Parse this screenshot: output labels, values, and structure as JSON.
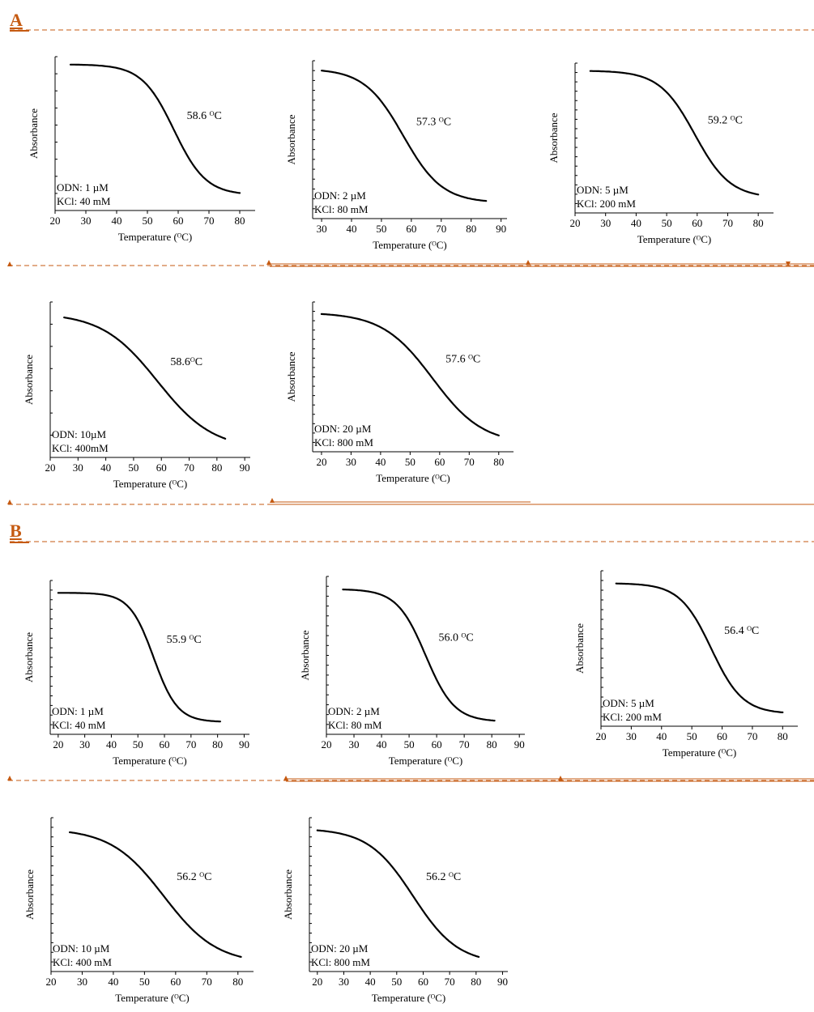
{
  "figure": {
    "section_a_label": "A",
    "section_b_label": "B",
    "colors": {
      "curve": "#000000",
      "axis": "#000000",
      "separator": "#c55a11"
    },
    "separator_marker_shape": "triangle"
  },
  "chart_data": [
    {
      "id": "a1",
      "section": "A",
      "type": "line",
      "series": [
        {
          "values_x": [
            25,
            80
          ],
          "tm": 58.6,
          "slope": 5.2,
          "y_top": 0.95,
          "y_bottom": 0.1
        }
      ],
      "annotation": "58.6 ᴼC",
      "legend_lines": [
        "ODN: 1 µM",
        "KCl: 40 mM"
      ],
      "xlabel": "Temperature (ᴼC)",
      "ylabel": "Absorbance",
      "xlim": [
        20,
        85
      ],
      "xticks": [
        20,
        30,
        40,
        50,
        60,
        70,
        80
      ],
      "y_ticks": 9
    },
    {
      "id": "a2",
      "section": "A",
      "type": "line",
      "series": [
        {
          "values_x": [
            30,
            85
          ],
          "tm": 57.3,
          "slope": 6.5,
          "y_top": 0.95,
          "y_bottom": 0.1
        }
      ],
      "annotation": "57.3 ᴼC",
      "legend_lines": [
        "ODN: 2 µM",
        "KCl: 80 mM"
      ],
      "xlabel": "Temperature (ᴼC)",
      "ylabel": "Absorbance",
      "xlim": [
        27,
        92
      ],
      "xticks": [
        30,
        40,
        50,
        60,
        70,
        80,
        90
      ],
      "y_ticks": 16
    },
    {
      "id": "a3",
      "section": "A",
      "type": "line",
      "series": [
        {
          "values_x": [
            25,
            80
          ],
          "tm": 59.2,
          "slope": 5.8,
          "y_top": 0.95,
          "y_bottom": 0.1
        }
      ],
      "annotation": "59.2 ᴼC",
      "legend_lines": [
        "ODN: 5 µM",
        "KCl: 200 mM"
      ],
      "xlabel": "Temperature (ᴼC)",
      "ylabel": "Absorbance",
      "xlim": [
        20,
        85
      ],
      "xticks": [
        20,
        30,
        40,
        50,
        60,
        70,
        80
      ],
      "y_ticks": 16
    },
    {
      "id": "a4",
      "section": "A",
      "type": "line",
      "series": [
        {
          "values_x": [
            25,
            83
          ],
          "tm": 58.6,
          "slope": 10.0,
          "y_top": 0.93,
          "y_bottom": 0.05
        }
      ],
      "annotation": "58.6ᴼC",
      "legend_lines": [
        "ODN: 10µM",
        "KCl: 400mM"
      ],
      "xlabel": "Temperature (ᴼC)",
      "ylabel": "Absorbance",
      "xlim": [
        20,
        92
      ],
      "xticks": [
        20,
        30,
        40,
        50,
        60,
        70,
        80,
        90
      ],
      "y_ticks": 7
    },
    {
      "id": "a5",
      "section": "A",
      "type": "line",
      "series": [
        {
          "values_x": [
            20,
            80
          ],
          "tm": 57.6,
          "slope": 8.5,
          "y_top": 0.93,
          "y_bottom": 0.05
        }
      ],
      "annotation": "57.6 ᴼC",
      "legend_lines": [
        "ODN: 20 µM",
        "KCl: 800 mM"
      ],
      "xlabel": "Temperature (ᴼC)",
      "ylabel": "Absorbance",
      "xlim": [
        17,
        85
      ],
      "xticks": [
        20,
        30,
        40,
        50,
        60,
        70,
        80
      ],
      "y_ticks": 16
    },
    {
      "id": "b1",
      "section": "B",
      "type": "line",
      "series": [
        {
          "values_x": [
            20,
            81
          ],
          "tm": 55.9,
          "slope": 4.5,
          "y_top": 0.92,
          "y_bottom": 0.08
        }
      ],
      "annotation": "55.9 ᴼC",
      "legend_lines": [
        "ODN: 1 µM",
        "KCl: 40 mM"
      ],
      "xlabel": "Temperature (ᴼC)",
      "ylabel": "Absorbance",
      "xlim": [
        17,
        92
      ],
      "xticks": [
        20,
        30,
        40,
        50,
        60,
        70,
        80,
        90
      ],
      "y_ticks": 16
    },
    {
      "id": "b2",
      "section": "B",
      "type": "line",
      "series": [
        {
          "values_x": [
            26,
            81
          ],
          "tm": 56.0,
          "slope": 5.2,
          "y_top": 0.92,
          "y_bottom": 0.08
        }
      ],
      "annotation": "56.0 ᴼC",
      "legend_lines": [
        "ODN: 2 µM",
        "KCl: 80 mM"
      ],
      "xlabel": "Temperature (ᴼC)",
      "ylabel": "Absorbance",
      "xlim": [
        20,
        92
      ],
      "xticks": [
        20,
        30,
        40,
        50,
        60,
        70,
        80,
        90
      ],
      "y_ticks": 16
    },
    {
      "id": "b3",
      "section": "B",
      "type": "line",
      "series": [
        {
          "values_x": [
            25,
            80
          ],
          "tm": 56.4,
          "slope": 5.2,
          "y_top": 0.92,
          "y_bottom": 0.08
        }
      ],
      "annotation": "56.4 ᴼC",
      "legend_lines": [
        "ODN: 5 µM",
        "KCl: 200 mM"
      ],
      "xlabel": "Temperature (ᴼC)",
      "ylabel": "Absorbance",
      "xlim": [
        20,
        85
      ],
      "xticks": [
        20,
        30,
        40,
        50,
        60,
        70,
        80
      ],
      "y_ticks": 16
    },
    {
      "id": "b4",
      "section": "B",
      "type": "line",
      "series": [
        {
          "values_x": [
            26,
            81
          ],
          "tm": 56.2,
          "slope": 8.5,
          "y_top": 0.93,
          "y_bottom": 0.05
        }
      ],
      "annotation": "56.2 ᴼC",
      "legend_lines": [
        "ODN: 10 µM",
        "KCl: 400 mM"
      ],
      "xlabel": "Temperature (ᴼC)",
      "ylabel": "Absorbance",
      "xlim": [
        20,
        85
      ],
      "xticks": [
        20,
        30,
        40,
        50,
        60,
        70,
        80
      ],
      "y_ticks": 16
    },
    {
      "id": "b5",
      "section": "B",
      "type": "line",
      "series": [
        {
          "values_x": [
            20,
            81
          ],
          "tm": 56.2,
          "slope": 8.5,
          "y_top": 0.93,
          "y_bottom": 0.05
        }
      ],
      "annotation": "56.2 ᴼC",
      "legend_lines": [
        "ODN: 20 µM",
        "KCl: 800 mM"
      ],
      "xlabel": "Temperature (ᴼC)",
      "ylabel": "Absorbance",
      "xlim": [
        17,
        92
      ],
      "xticks": [
        20,
        30,
        40,
        50,
        60,
        70,
        80,
        90
      ],
      "y_ticks": 16
    }
  ]
}
